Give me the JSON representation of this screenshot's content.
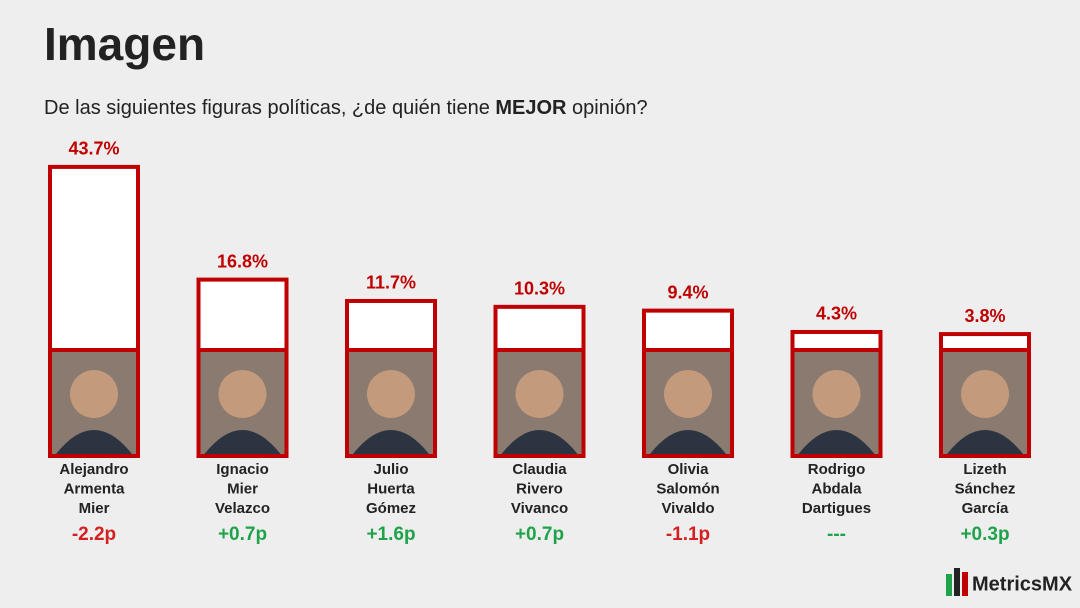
{
  "chart_data": {
    "type": "bar",
    "title": "Imagen",
    "subtitle": [
      "De las siguientes figuras políticas, ¿de quién tiene ",
      "MEJOR",
      " opinión?"
    ],
    "categories": [
      [
        "Alejandro",
        "Armenta",
        "Mier"
      ],
      [
        "Ignacio",
        "Mier",
        "Velazco"
      ],
      [
        "Julio",
        "Huerta",
        "Gómez"
      ],
      [
        "Claudia",
        "Rivero",
        "Vivanco"
      ],
      [
        "Olivia",
        "Salomón",
        "Vivaldo"
      ],
      [
        "Rodrigo",
        "Abdala",
        "Dartigues"
      ],
      [
        "Lizeth",
        "Sánchez",
        "García"
      ]
    ],
    "values": [
      43.7,
      16.8,
      11.7,
      10.3,
      9.4,
      4.3,
      3.8
    ],
    "value_labels": [
      "43.7%",
      "16.8%",
      "11.7%",
      "10.3%",
      "9.4%",
      "4.3%",
      "3.8%"
    ],
    "color": "#c00000",
    "change_labels": [
      "-2.2p",
      "+0.7p",
      "+1.6p",
      "+0.7p",
      "-1.1p",
      "---",
      "+0.3p"
    ],
    "change_colors": [
      "#d42020",
      "#1fa34a",
      "#1fa34a",
      "#1fa34a",
      "#d42020",
      "#1fa34a",
      "#1fa34a"
    ],
    "logo": "MetricsMX"
  }
}
